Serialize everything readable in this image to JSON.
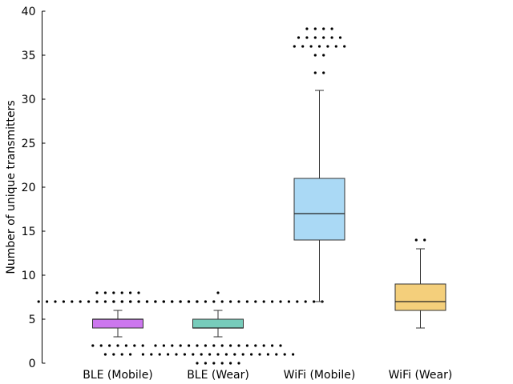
{
  "chart_data": {
    "type": "box",
    "title": "",
    "xlabel": "",
    "ylabel": "Number of unique transmitters",
    "ylim": [
      0,
      40
    ],
    "yticks": [
      0,
      5,
      10,
      15,
      20,
      25,
      30,
      35,
      40
    ],
    "grid": false,
    "categories": [
      "BLE (Mobile)",
      "BLE (Wear)",
      "WiFi (Mobile)",
      "WiFi (Wear)"
    ],
    "colors": [
      "#cc77ee",
      "#77ccbb",
      "#aad9f5",
      "#f4cf7b"
    ],
    "boxes": [
      {
        "whisker_low": 3,
        "q1": 4,
        "median": 5,
        "q3": 5,
        "whisker_high": 6,
        "outliers": [
          {
            "value": 8,
            "count": 6
          },
          {
            "value": 7,
            "count": 20
          },
          {
            "value": 2,
            "count": 7
          },
          {
            "value": 1,
            "count": 4
          }
        ]
      },
      {
        "whisker_low": 3,
        "q1": 4,
        "median": 4,
        "q3": 5,
        "whisker_high": 6,
        "outliers": [
          {
            "value": 8,
            "count": 1
          },
          {
            "value": 7,
            "count": 26
          },
          {
            "value": 2,
            "count": 16
          },
          {
            "value": 1,
            "count": 19
          },
          {
            "value": 0,
            "count": 6
          }
        ]
      },
      {
        "whisker_low": 7,
        "q1": 14,
        "median": 17,
        "q3": 21,
        "whisker_high": 31,
        "outliers": [
          {
            "value": 38,
            "count": 4
          },
          {
            "value": 37,
            "count": 6
          },
          {
            "value": 36,
            "count": 7
          },
          {
            "value": 35,
            "count": 2
          },
          {
            "value": 33,
            "count": 2
          }
        ]
      },
      {
        "whisker_low": 4,
        "q1": 6,
        "median": 7,
        "q3": 9,
        "whisker_high": 13,
        "outliers": [
          {
            "value": 14,
            "count": 2
          }
        ]
      }
    ]
  }
}
